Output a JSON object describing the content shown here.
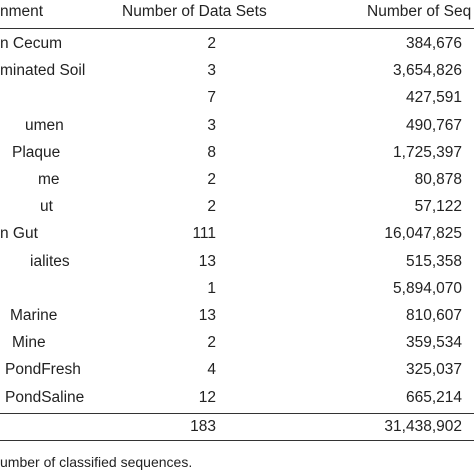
{
  "table": {
    "header": [
      "nment",
      "Number of Data Sets",
      "Number of Seq"
    ],
    "rows": [
      {
        "environment": "n Cecum",
        "data_sets": "2",
        "sequences": "384,676"
      },
      {
        "environment": "minated Soil",
        "data_sets": "3",
        "sequences": "3,654,826"
      },
      {
        "data_sets": "7",
        "sequences": "427,591"
      },
      {
        "environment": "umen",
        "data_sets": "3",
        "sequences": "490,767"
      },
      {
        "environment": "Plaque",
        "data_sets": "8",
        "sequences": "1,725,397"
      },
      {
        "environment": "me",
        "data_sets": "2",
        "sequences": "80,878"
      },
      {
        "environment": "ut",
        "data_sets": "2",
        "sequences": "57,122"
      },
      {
        "environment": "n Gut",
        "data_sets": "111",
        "sequences": "16,047,825"
      },
      {
        "environment": "ialites",
        "data_sets": "13",
        "sequences": "515,358"
      },
      {
        "data_sets": "1",
        "sequences": "5,894,070"
      },
      {
        "environment": "Marine",
        "data_sets": "13",
        "sequences": "810,607"
      },
      {
        "environment": "Mine",
        "data_sets": "2",
        "sequences": "359,534"
      },
      {
        "environment": "PondFresh",
        "data_sets": "4",
        "sequences": "325,037"
      },
      {
        "environment": "PondSaline",
        "data_sets": "12",
        "sequences": "665,214"
      }
    ],
    "total": {
      "data_sets": "183",
      "sequences": "31,438,902"
    }
  },
  "footnote": "umber of classified sequences."
}
